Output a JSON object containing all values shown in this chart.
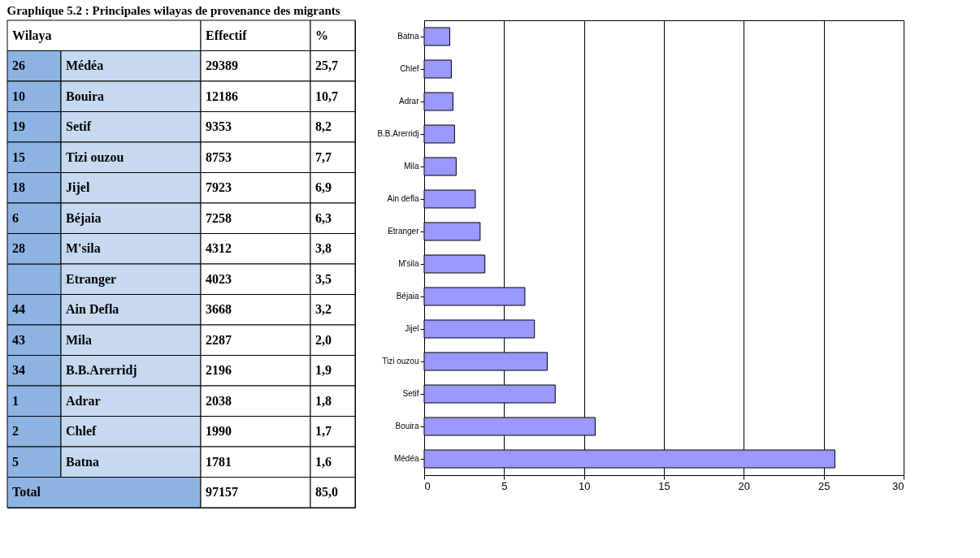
{
  "chart_data": [
    {
      "type": "other",
      "title": "Graphique 5.2 : Principales wilayas de provenance des migrants",
      "colors": [
        "#8db3e2",
        "#c6d9f1",
        "#ffffff",
        "#ffffff"
      ],
      "annotations": [
        "Wilaya",
        "Effectif",
        "%",
        "26",
        "Médéa",
        "29389",
        "25,7",
        "10",
        "Bouira",
        "12186",
        "10,7",
        "19",
        "Setif",
        "9353",
        "8,2",
        "15",
        "Tizi ouzou",
        "8753",
        "7,7",
        "18",
        "Jijel",
        "7923",
        "6,9",
        "6",
        "Béjaia",
        "7258",
        "6,3",
        "28",
        "M'sila",
        "4312",
        "3,8",
        null,
        "Etranger",
        "4023",
        "3,5",
        "44",
        "Ain Defla",
        "3668",
        "3,2",
        "43",
        "Mila",
        "2287",
        "2,0",
        "34",
        "B.B.Arerridj",
        "2196",
        "1,9",
        "1",
        "Adrar",
        "2038",
        "1,8",
        "2",
        "Chlef",
        "1990",
        "1,7",
        "5",
        "Batna",
        "1781",
        "1,6",
        "Total",
        "97157",
        "85,0"
      ]
    },
    {
      "type": "bar",
      "orientation": "horizontal",
      "categories": [
        "Batna",
        "Chlef",
        "Adrar",
        "B.B.Arerridj",
        "Mila",
        "Ain defla",
        "Etranger",
        "M'sila",
        "Béjaia",
        "Jijel",
        "Tizi ouzou",
        "Setif",
        "Bouira",
        "Médéa"
      ],
      "values": [
        1.6,
        1.7,
        1.8,
        1.9,
        2.0,
        3.2,
        3.5,
        3.8,
        6.3,
        6.9,
        7.7,
        8.2,
        10.7,
        25.7
      ],
      "color": "#9999ff",
      "xlim": [
        0,
        30
      ],
      "xticks": [
        0,
        5,
        10,
        15,
        20,
        25,
        30
      ],
      "grid": "x"
    }
  ]
}
